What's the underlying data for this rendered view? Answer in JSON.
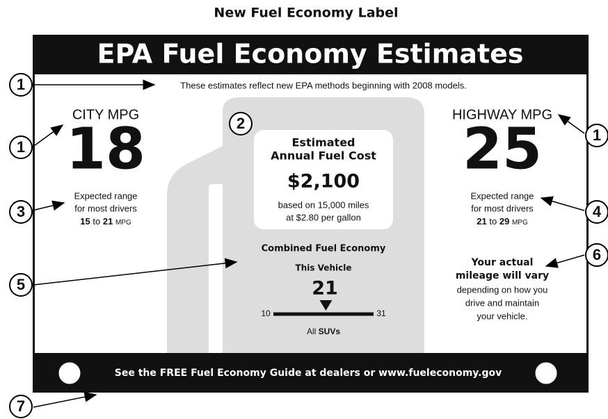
{
  "page_title": "New Fuel Economy Label",
  "label": {
    "header": "EPA Fuel Economy Estimates",
    "note": "These estimates reflect new EPA methods beginning with 2008 models.",
    "city": {
      "title": "CITY MPG",
      "mpg": 18,
      "range_lines": [
        "Expected range",
        "for most drivers"
      ],
      "range_low": 15,
      "range_to": "to",
      "range_high": 21,
      "range_unit": "MPG"
    },
    "highway": {
      "title": "HIGHWAY MPG",
      "mpg": 25,
      "range_lines": [
        "Expected range",
        "for most drivers"
      ],
      "range_low": 21,
      "range_to": "to",
      "range_high": 29,
      "range_unit": "MPG"
    },
    "cost": {
      "title_lines": [
        "Estimated",
        "Annual Fuel Cost"
      ],
      "amount": "$2,100",
      "basis_lines": [
        "based on 15,000 miles",
        "at $2.80 per gallon"
      ]
    },
    "combined": {
      "title": "Combined Fuel Economy",
      "vehicle_label": "This Vehicle",
      "value": 21,
      "scale_min": 10,
      "scale_max": 31,
      "class_prefix": "All",
      "class_name": "SUVs"
    },
    "disclaimer": {
      "bold_lines": [
        "Your actual",
        "mileage will vary"
      ],
      "lines": [
        "depending on how you",
        "drive and maintain",
        "your vehicle."
      ]
    },
    "footer": "See the FREE Fuel Economy Guide at dealers or www.fueleconomy.gov"
  },
  "callouts": [
    "1",
    "1",
    "1",
    "1",
    "2",
    "3",
    "4",
    "5",
    "6",
    "7"
  ]
}
